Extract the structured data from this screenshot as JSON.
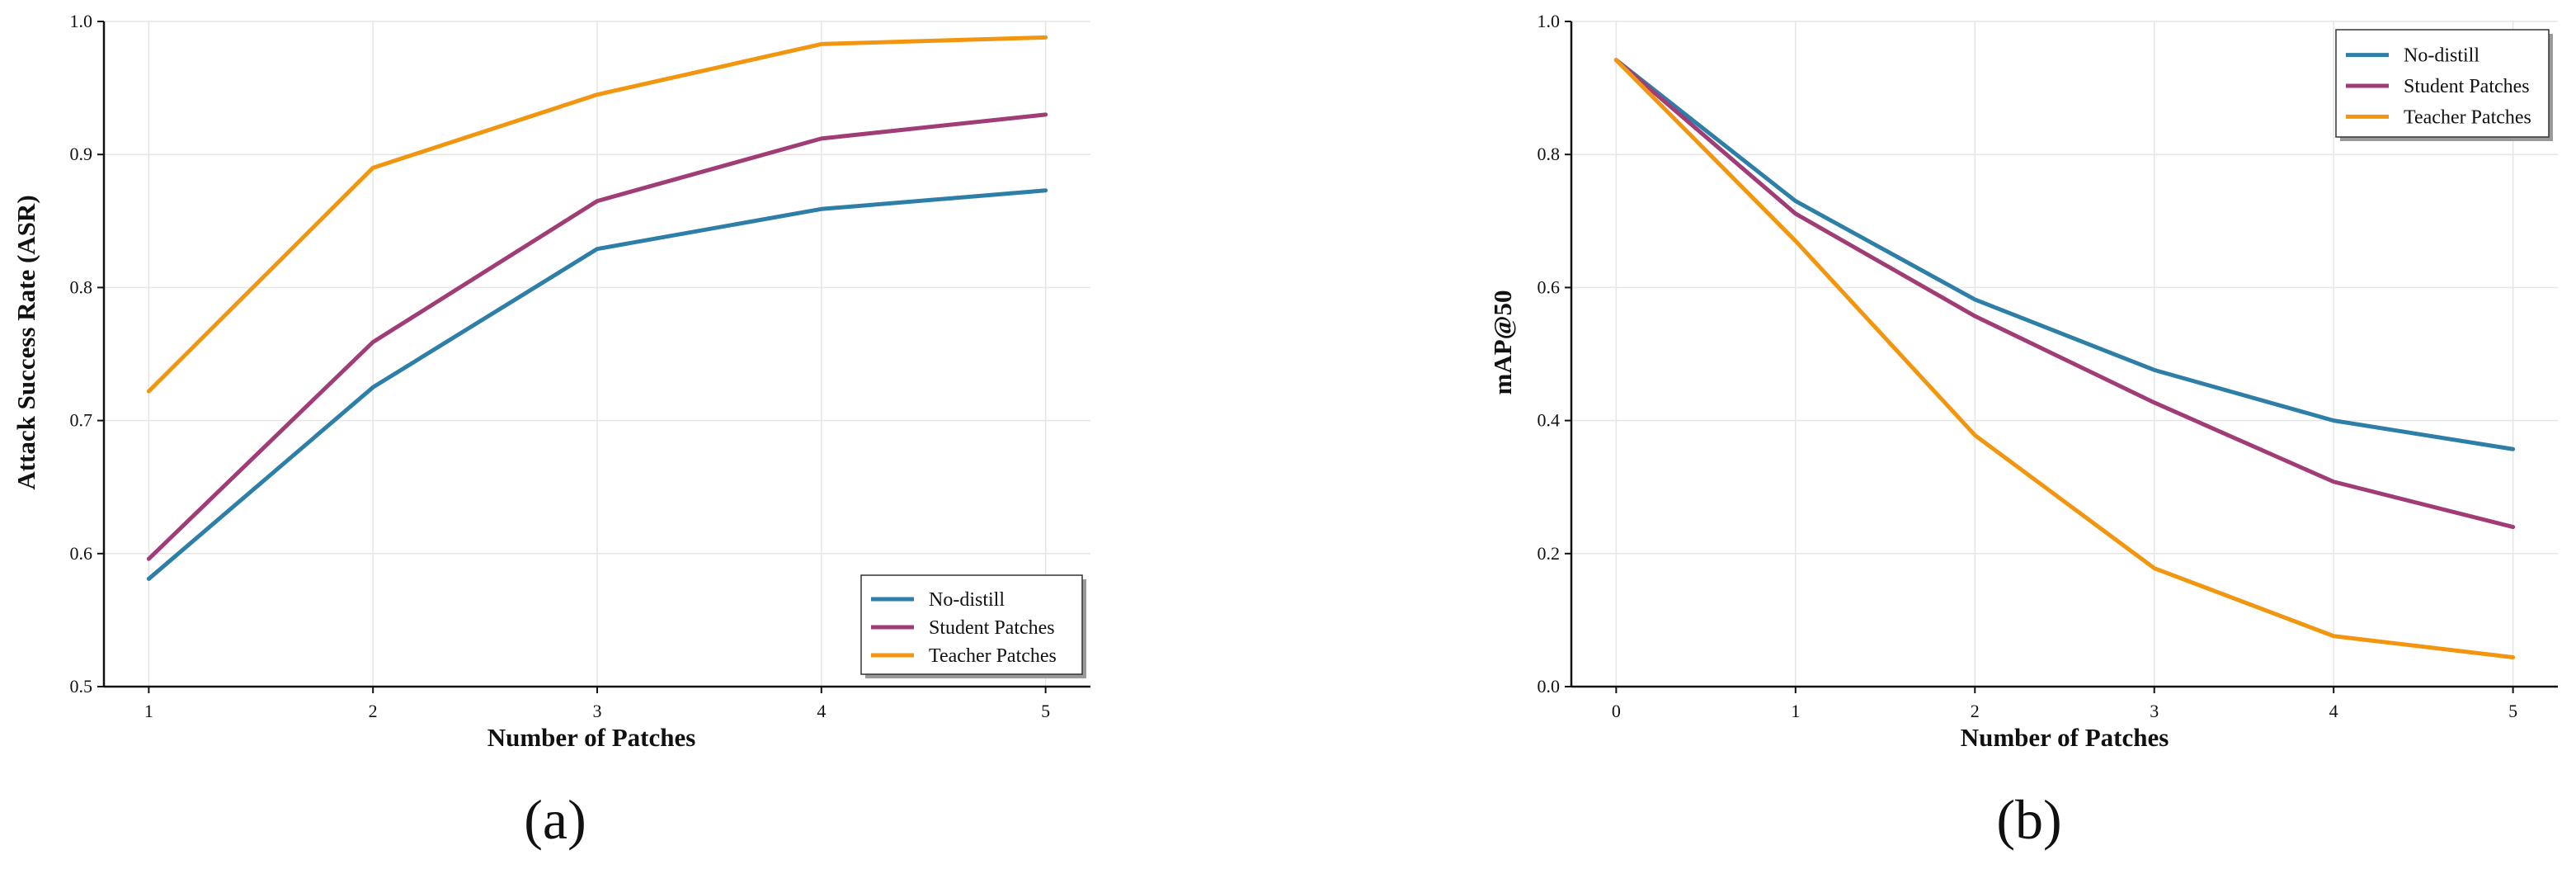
{
  "colors": {
    "no_distill": "#2e7fa8",
    "student": "#a03c76",
    "teacher": "#f2950f"
  },
  "chart_data": [
    {
      "type": "line",
      "panel_label": "(a)",
      "title": "",
      "xlabel": "Number of Patches",
      "ylabel": "Attack Success Rate (ASR)",
      "x": [
        1,
        2,
        3,
        4,
        5
      ],
      "xticks": [
        "1",
        "2",
        "3",
        "4",
        "5"
      ],
      "xlim": [
        0.8,
        5.2
      ],
      "ylim": [
        0.5,
        1.0
      ],
      "yticks": [
        "0.5",
        "0.6",
        "0.7",
        "0.8",
        "0.9",
        "1.0"
      ],
      "grid": true,
      "legend_position": "bottom-right",
      "series": [
        {
          "name": "No-distill",
          "color_key": "no_distill",
          "values": [
            0.581,
            0.725,
            0.829,
            0.859,
            0.873
          ]
        },
        {
          "name": "Student Patches",
          "color_key": "student",
          "values": [
            0.596,
            0.759,
            0.865,
            0.912,
            0.93
          ]
        },
        {
          "name": "Teacher Patches",
          "color_key": "teacher",
          "values": [
            0.722,
            0.89,
            0.945,
            0.983,
            0.988
          ]
        }
      ]
    },
    {
      "type": "line",
      "panel_label": "(b)",
      "title": "",
      "xlabel": "Number of Patches",
      "ylabel": "mAP@50",
      "x": [
        0,
        1,
        2,
        3,
        4,
        5
      ],
      "xticks": [
        "0",
        "1",
        "2",
        "3",
        "4",
        "5"
      ],
      "xlim": [
        -0.25,
        5.25
      ],
      "ylim": [
        0.0,
        1.0
      ],
      "yticks": [
        "0.0",
        "0.2",
        "0.4",
        "0.6",
        "0.8",
        "1.0"
      ],
      "grid": true,
      "legend_position": "top-right",
      "series": [
        {
          "name": "No-distill",
          "color_key": "no_distill",
          "values": [
            0.942,
            0.73,
            0.582,
            0.476,
            0.4,
            0.357
          ]
        },
        {
          "name": "Student Patches",
          "color_key": "student",
          "values": [
            0.942,
            0.711,
            0.557,
            0.427,
            0.308,
            0.24
          ]
        },
        {
          "name": "Teacher Patches",
          "color_key": "teacher",
          "values": [
            0.942,
            0.67,
            0.378,
            0.178,
            0.076,
            0.044
          ]
        }
      ]
    }
  ]
}
